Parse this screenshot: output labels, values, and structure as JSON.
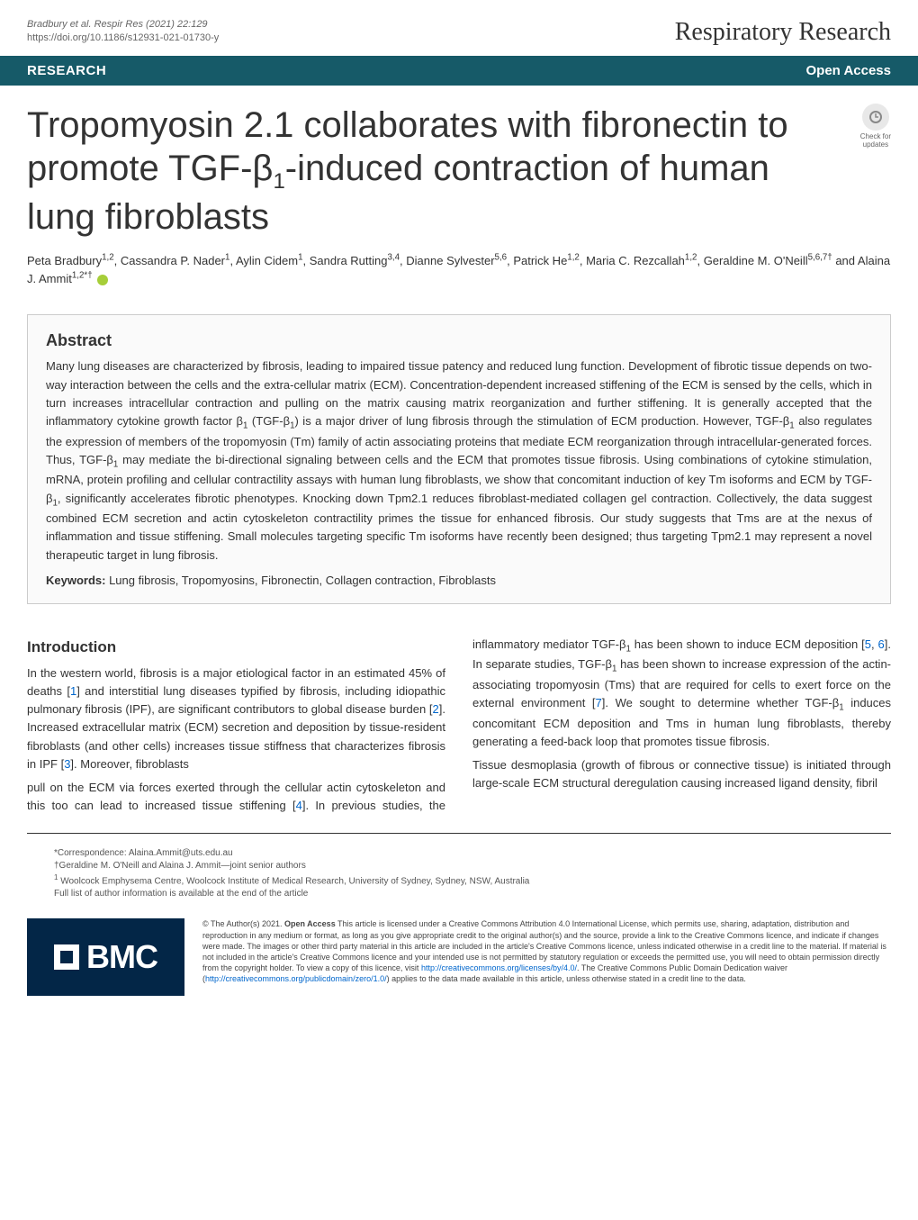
{
  "header": {
    "citation_line1": "Bradbury et al. Respir Res     (2021) 22:129",
    "citation_line2": "https://doi.org/10.1186/s12931-021-01730-y",
    "journal": "Respiratory Research"
  },
  "section_bar": {
    "label": "RESEARCH",
    "access": "Open Access"
  },
  "title": {
    "text_html": "Tropomyosin 2.1 collaborates with fibronectin to promote TGF-β<sub>1</sub>-induced contraction of human lung fibroblasts"
  },
  "check_updates": {
    "label1": "Check for",
    "label2": "updates"
  },
  "authors": {
    "html": "Peta Bradbury<sup>1,2</sup>, Cassandra P. Nader<sup>1</sup>, Aylin Cidem<sup>1</sup>, Sandra Rutting<sup>3,4</sup>, Dianne Sylvester<sup>5,6</sup>, Patrick He<sup>1,2</sup>, Maria C. Rezcallah<sup>1,2</sup>, Geraldine M. O'Neill<sup>5,6,7†</sup> and Alaina J. Ammit<sup>1,2*†</sup>"
  },
  "abstract": {
    "heading": "Abstract",
    "body_html": "Many lung diseases are characterized by fibrosis, leading to impaired tissue patency and reduced lung function. Development of fibrotic tissue depends on two-way interaction between the cells and the extra-cellular matrix (ECM). Concentration-dependent increased stiffening of the ECM is sensed by the cells, which in turn increases intracellular contraction and pulling on the matrix causing matrix reorganization and further stiffening. It is generally accepted that the inflammatory cytokine growth factor β<sub>1</sub> (TGF-β<sub>1</sub>) is a major driver of lung fibrosis through the stimulation of ECM production. However, TGF-β<sub>1</sub> also regulates the expression of members of the tropomyosin (Tm) family of actin associating proteins that mediate ECM reorganization through intracellular-generated forces. Thus, TGF-β<sub>1</sub> may mediate the bi-directional signaling between cells and the ECM that promotes tissue fibrosis. Using combinations of cytokine stimulation, mRNA, protein profiling and cellular contractility assays with human lung fibroblasts, we show that concomitant induction of key Tm isoforms and ECM by TGF-β<sub>1</sub>, significantly accelerates fibrotic phenotypes. Knocking down Tpm2.1 reduces fibroblast-mediated collagen gel contraction. Collectively, the data suggest combined ECM secretion and actin cytoskeleton contractility primes the tissue for enhanced fibrosis. Our study suggests that Tms are at the nexus of inflammation and tissue stiffening. Small molecules targeting specific Tm isoforms have recently been designed; thus targeting Tpm2.1 may represent a novel therapeutic target in lung fibrosis.",
    "keywords_label": "Keywords:",
    "keywords_text": " Lung fibrosis, Tropomyosins, Fibronectin, Collagen contraction, Fibroblasts"
  },
  "intro": {
    "heading": "Introduction",
    "col1_html": "In the western world, fibrosis is a major etiological factor in an estimated 45% of deaths [<span class='ref-link'>1</span>] and interstitial lung diseases typified by fibrosis, including idiopathic pulmonary fibrosis (IPF), are significant contributors to global disease burden [<span class='ref-link'>2</span>]. Increased extracellular matrix (ECM) secretion and deposition by tissue-resident fibroblasts (and other cells) increases tissue stiffness that characterizes fibrosis in IPF [<span class='ref-link'>3</span>]. Moreover, fibroblasts",
    "col2_html": "pull on the ECM via forces exerted through the cellular actin cytoskeleton and this too can lead to increased tissue stiffening [<span class='ref-link'>4</span>]. In previous studies, the inflammatory mediator TGF-β<sub>1</sub> has been shown to induce ECM deposition [<span class='ref-link'>5</span>, <span class='ref-link'>6</span>]. In separate studies, TGF-β<sub>1</sub> has been shown to increase expression of the actin-associating tropomyosin (Tms) that are required for cells to exert force on the external environment [<span class='ref-link'>7</span>]. We sought to determine whether TGF-β<sub>1</sub> induces concomitant ECM deposition and Tms in human lung fibroblasts, thereby generating a feed-back loop that promotes tissue fibrosis.",
    "col2_p2_html": "Tissue desmoplasia (growth of fibrous or connective tissue) is initiated through large-scale ECM structural deregulation causing increased ligand density, fibril"
  },
  "footer": {
    "correspondence": "*Correspondence: Alaina.Ammit@uts.edu.au",
    "joint": "†Geraldine M. O'Neill and Alaina J. Ammit—joint senior authors",
    "affil1_html": "<sup>1</sup> Woolcock Emphysema Centre, Woolcock Institute of Medical Research, University of Sydney, Sydney, NSW, Australia",
    "full_list": "Full list of author information is available at the end of the article"
  },
  "license": {
    "bmc": "BMC",
    "text_html": "© The Author(s) 2021. <span class='bold'>Open Access</span> This article is licensed under a Creative Commons Attribution 4.0 International License, which permits use, sharing, adaptation, distribution and reproduction in any medium or format, as long as you give appropriate credit to the original author(s) and the source, provide a link to the Creative Commons licence, and indicate if changes were made. The images or other third party material in this article are included in the article's Creative Commons licence, unless indicated otherwise in a credit line to the material. If material is not included in the article's Creative Commons licence and your intended use is not permitted by statutory regulation or exceeds the permitted use, you will need to obtain permission directly from the copyright holder. To view a copy of this licence, visit <span class='link'>http://creativecommons.org/licenses/by/4.0/</span>. The Creative Commons Public Domain Dedication waiver (<span class='link'>http://creativecommons.org/publicdomain/zero/1.0/</span>) applies to the data made available in this article, unless otherwise stated in a credit line to the data."
  },
  "colors": {
    "teal": "#165a68",
    "navy": "#032647",
    "link": "#0066cc",
    "orcid": "#a6ce39"
  }
}
